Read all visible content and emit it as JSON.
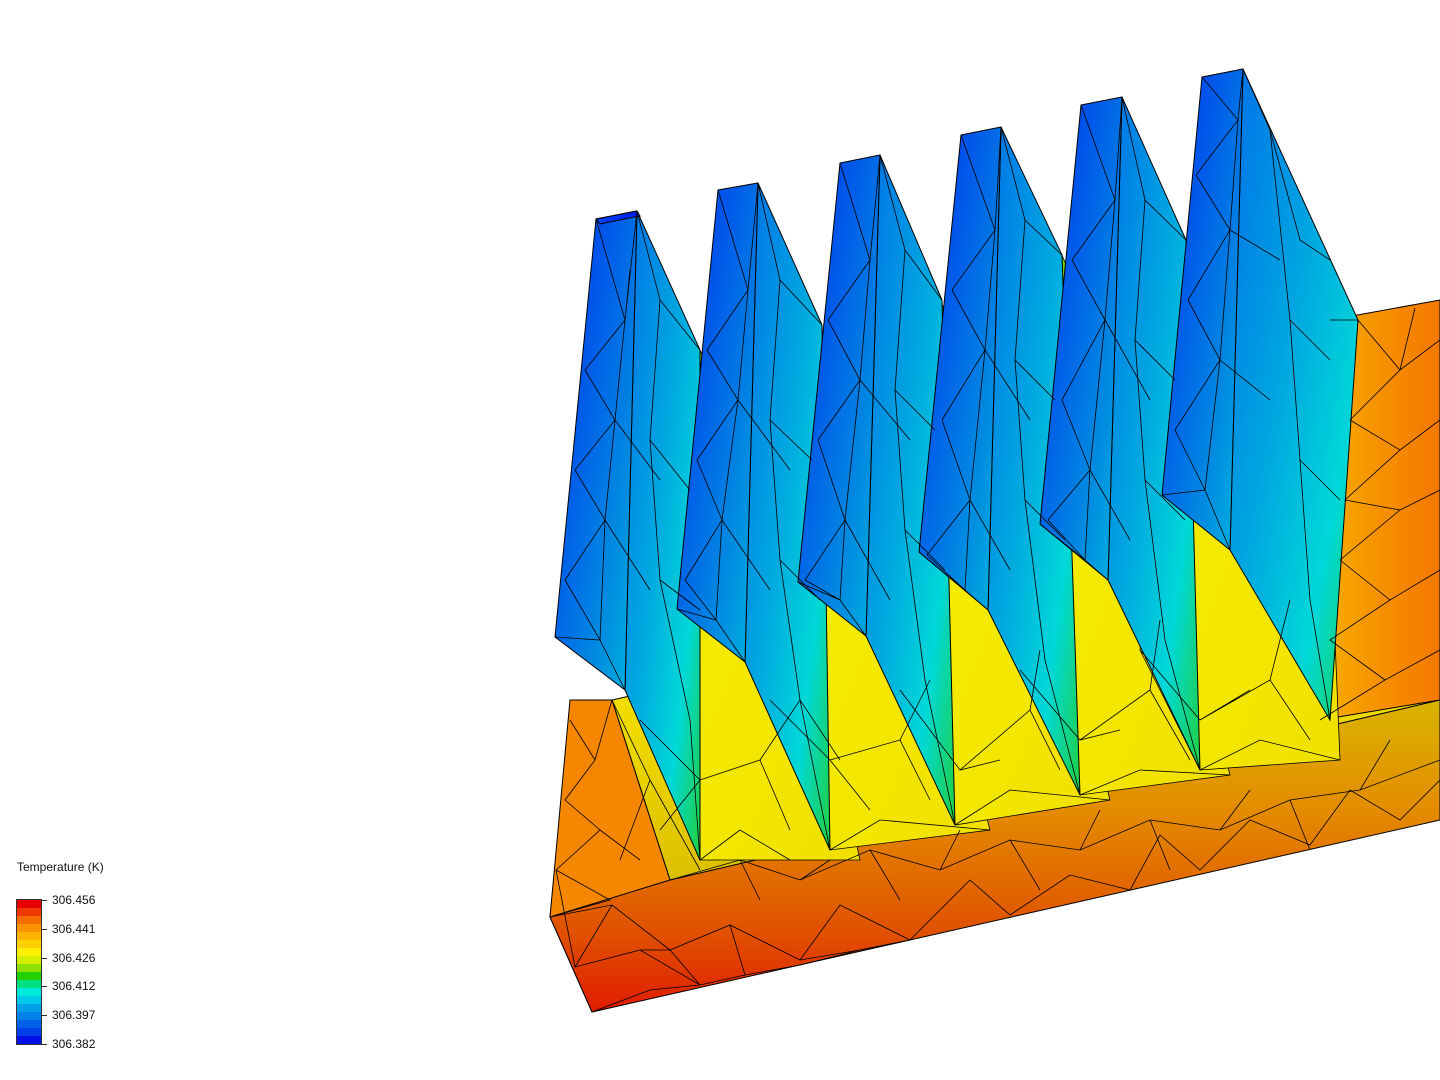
{
  "legend": {
    "title": "Temperature (K)",
    "labels": [
      "306.456",
      "306.441",
      "306.426",
      "306.412",
      "306.397",
      "306.382"
    ],
    "band_colors": [
      "#e60000",
      "#ee3a00",
      "#f56d00",
      "#f99400",
      "#fbb400",
      "#ffd000",
      "#fff000",
      "#d4f000",
      "#8ee000",
      "#22d000",
      "#00e080",
      "#00e8d8",
      "#00c8e8",
      "#00a0e8",
      "#0080e8",
      "#0060e8",
      "#0040e8",
      "#0010e8"
    ]
  },
  "scene": {
    "object": "heat-sink",
    "fin_count": 6,
    "mesh": "triangular",
    "colors": {
      "fin_cold": "#0030f0",
      "fin_mid": "#0090e8",
      "fin_cyan": "#00d8e0",
      "fin_green": "#10d020",
      "channel_yellow": "#f4ec00",
      "base_top": "#d6c200",
      "base_orange": "#f58a00",
      "base_hot": "#dc3000",
      "edge": "#000000"
    }
  }
}
